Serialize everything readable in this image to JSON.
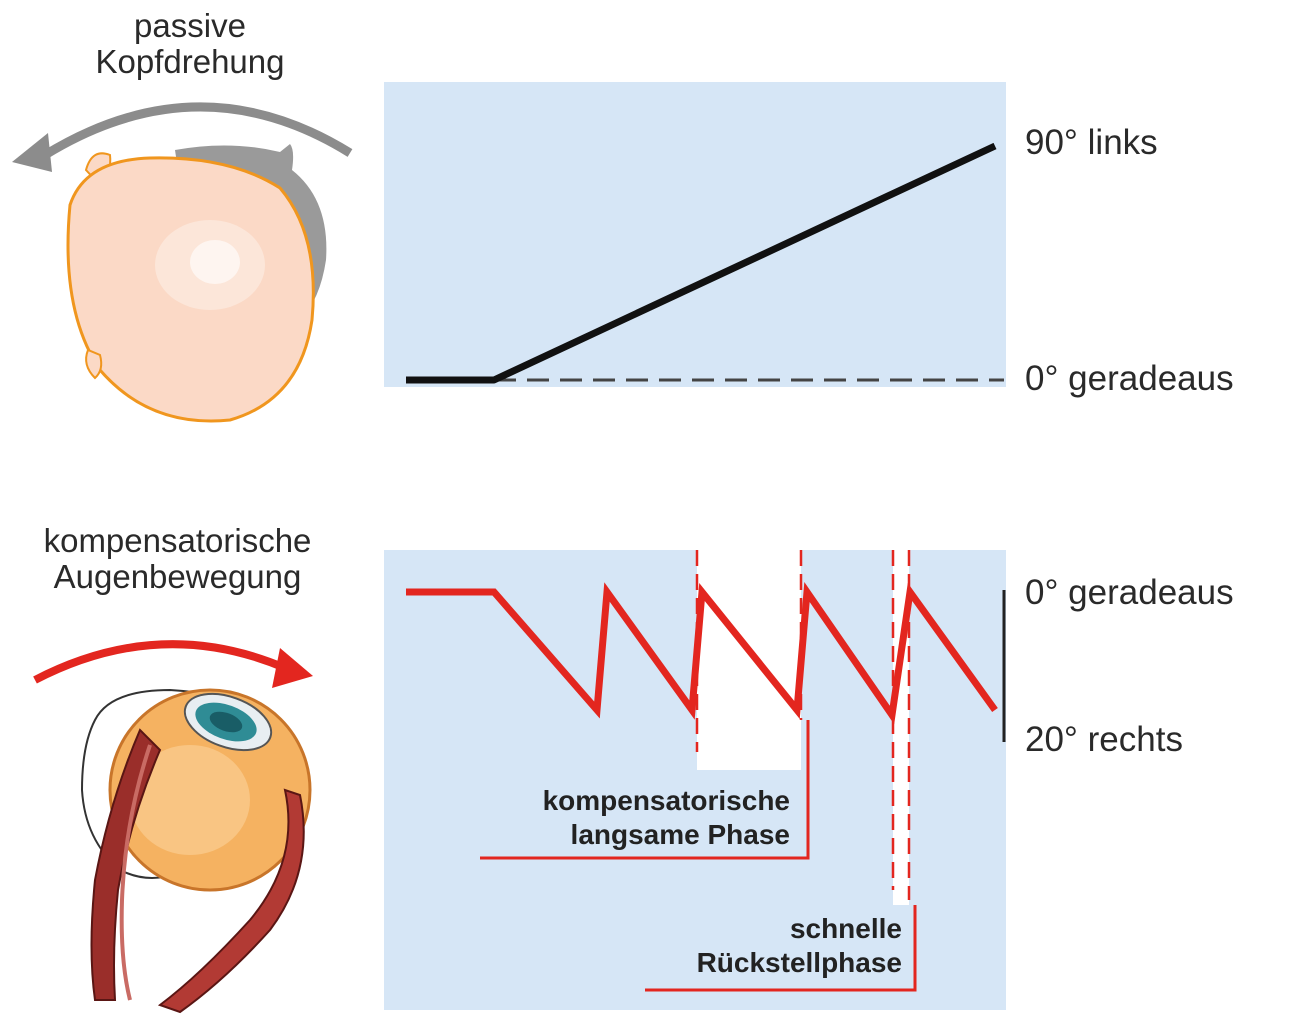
{
  "top": {
    "caption_line1": "passive",
    "caption_line2": "Kopfdrehung",
    "label_high": "90° links",
    "label_zero": "0° geradeaus"
  },
  "bottom": {
    "caption_line1": "kompensatorische",
    "caption_line2": "Augenbewegung",
    "label_zero": "0° geradeaus",
    "label_low": "20° rechts",
    "slow_phase_line1": "kompensatorische",
    "slow_phase_line2": "langsame Phase",
    "fast_phase_line1": "schnelle",
    "fast_phase_line2": "Rückstellphase"
  },
  "colors": {
    "panel": "#d6e6f6",
    "trace_head": "#111111",
    "trace_eye": "#e3261f",
    "arrow_head": "#8c8c8c",
    "arrow_eye": "#e3261f",
    "head_skin": "#fbd9c6",
    "head_outline": "#f0961e"
  }
}
